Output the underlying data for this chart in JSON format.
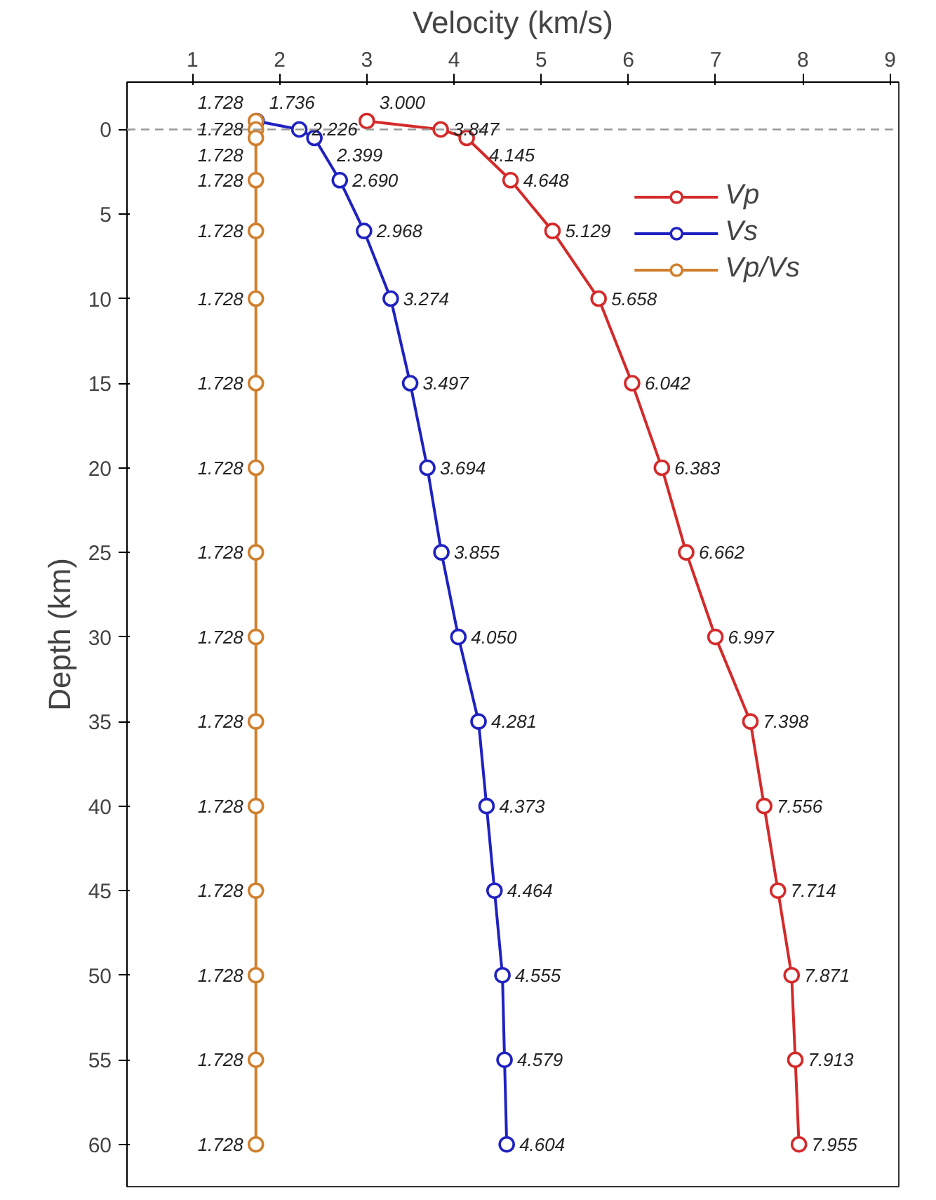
{
  "chart_data": {
    "type": "line",
    "orientation": "horizontal",
    "xlabel": "Velocity (km/s)",
    "ylabel": "Depth (km)",
    "xlim": [
      0.25,
      9.1
    ],
    "xticks": [
      1,
      2,
      3,
      4,
      5,
      6,
      7,
      8,
      9
    ],
    "ylim": [
      62.5,
      -2.8
    ],
    "yticks": [
      0,
      5,
      10,
      15,
      20,
      25,
      30,
      35,
      40,
      45,
      50,
      55,
      60
    ],
    "marker": "circle",
    "line_style": "solid",
    "grid": false,
    "legend": "top right",
    "ref_lines": [
      {
        "axis": "y",
        "value": 0,
        "color": "#999999",
        "line_style": "dashed"
      }
    ],
    "series": [
      {
        "name": "Vp",
        "color": "#d42a2a",
        "x": [
          -0.5,
          0,
          0.5,
          3,
          6,
          10,
          15,
          20,
          25,
          30,
          35,
          40,
          45,
          50,
          55,
          60
        ],
        "values": [
          3.0,
          3.847,
          4.145,
          4.648,
          5.129,
          5.658,
          6.042,
          6.383,
          6.662,
          6.997,
          7.398,
          7.556,
          7.714,
          7.871,
          7.913,
          7.955
        ],
        "value_labels": [
          "3.000",
          "3.847",
          "4.145",
          "4.648",
          "5.129",
          "5.658",
          "6.042",
          "6.383",
          "6.662",
          "6.997",
          "7.398",
          "7.556",
          "7.714",
          "7.871",
          "7.913",
          "7.955"
        ]
      },
      {
        "name": "Vs",
        "color": "#1f22c0",
        "x": [
          -0.5,
          0,
          0.5,
          3,
          6,
          10,
          15,
          20,
          25,
          30,
          35,
          40,
          45,
          50,
          55,
          60
        ],
        "values": [
          1.736,
          2.226,
          2.399,
          2.69,
          2.968,
          3.274,
          3.497,
          3.694,
          3.855,
          4.05,
          4.281,
          4.373,
          4.464,
          4.555,
          4.579,
          4.604
        ],
        "value_labels": [
          "1.736",
          "2.226",
          "2.399",
          "2.690",
          "2.968",
          "3.274",
          "3.497",
          "3.694",
          "3.855",
          "4.050",
          "4.281",
          "4.373",
          "4.464",
          "4.555",
          "4.579",
          "4.604"
        ]
      },
      {
        "name": "Vp/Vs",
        "color": "#d0802e",
        "x": [
          -0.5,
          0,
          0.5,
          3,
          6,
          10,
          15,
          20,
          25,
          30,
          35,
          40,
          45,
          50,
          55,
          60
        ],
        "values": [
          1.728,
          1.728,
          1.728,
          1.728,
          1.728,
          1.728,
          1.728,
          1.728,
          1.728,
          1.728,
          1.728,
          1.728,
          1.728,
          1.728,
          1.728,
          1.728
        ],
        "value_labels": [
          "1.728",
          "1.728",
          "1.728",
          "1.728",
          "1.728",
          "1.728",
          "1.728",
          "1.728",
          "1.728",
          "1.728",
          "1.728",
          "1.728",
          "1.728",
          "1.728",
          "1.728",
          "1.728"
        ]
      }
    ]
  }
}
